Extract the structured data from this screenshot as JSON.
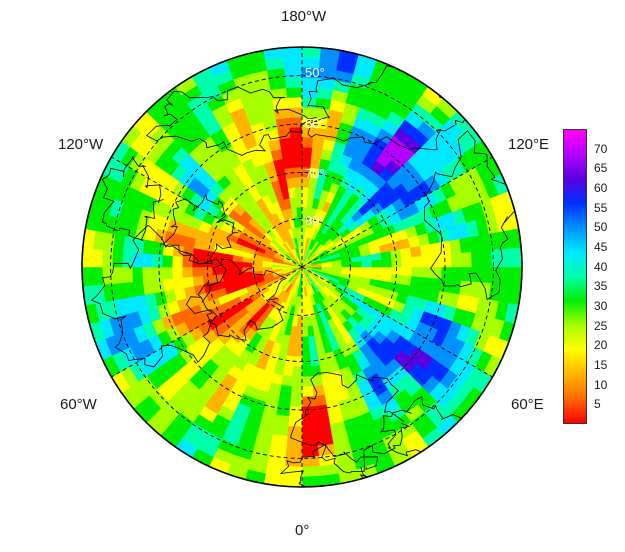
{
  "map": {
    "projection": "north-polar-stereographic",
    "colormap": [
      "#ff0000",
      "#ff6a00",
      "#ffb400",
      "#ffff00",
      "#a8ff00",
      "#00ee00",
      "#00ffaa",
      "#00e8ff",
      "#0090ff",
      "#0030ff",
      "#5a00e0",
      "#b400ff",
      "#ff00ff"
    ],
    "lon_labels": {
      "top": "180°W",
      "bottom": "0°",
      "left_upper": "120°W",
      "right_upper": "120°E",
      "left_lower": "60°W",
      "right_lower": "60°E"
    },
    "lat_labels": [
      "50°",
      "60°",
      "70°",
      "80°"
    ]
  },
  "colorbar": {
    "min": 0,
    "max": 75,
    "ticks": [
      "5",
      "10",
      "15",
      "20",
      "25",
      "30",
      "35",
      "40",
      "45",
      "50",
      "55",
      "60",
      "65",
      "70"
    ]
  }
}
